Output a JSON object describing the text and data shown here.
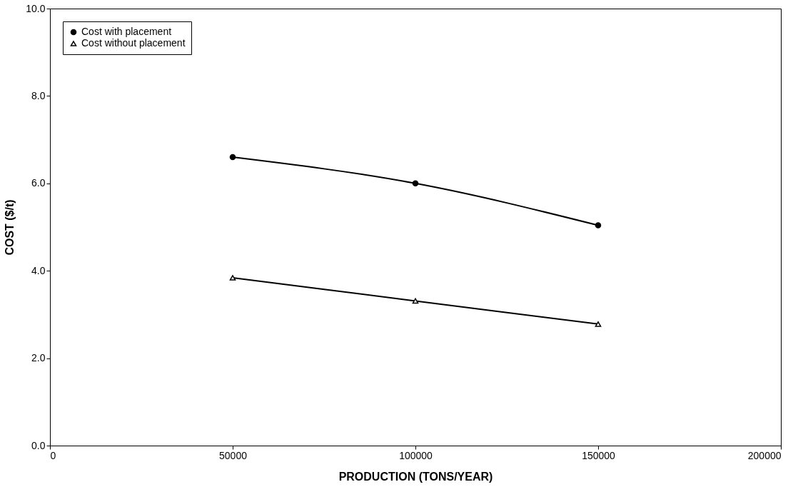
{
  "chart_data": {
    "type": "line",
    "xlabel": "PRODUCTION  (TONS/YEAR)",
    "ylabel": "COST ($/t)",
    "x": [
      50000,
      100000,
      150000
    ],
    "series": [
      {
        "name": "Cost with placement",
        "color": "#000000",
        "marker": "circle",
        "values": [
          6.6,
          6.0,
          5.04
        ]
      },
      {
        "name": "Cost without placement",
        "color": "#000000",
        "marker": "triangle",
        "values": [
          3.84,
          3.31,
          2.78
        ]
      }
    ],
    "xlim": [
      0,
      200000
    ],
    "xticks": [
      0,
      50000,
      100000,
      150000,
      200000
    ],
    "ylim": [
      0,
      10
    ],
    "yticks": [
      {
        "value": 0,
        "label": "0.0"
      },
      {
        "value": 2,
        "label": "2.0"
      },
      {
        "value": 4,
        "label": "4.0"
      },
      {
        "value": 6,
        "label": "6.0"
      },
      {
        "value": 8,
        "label": "8.0"
      },
      {
        "value": 10,
        "label": "10.0"
      }
    ],
    "grid": false,
    "legend": "top left",
    "line_style": "solid"
  }
}
